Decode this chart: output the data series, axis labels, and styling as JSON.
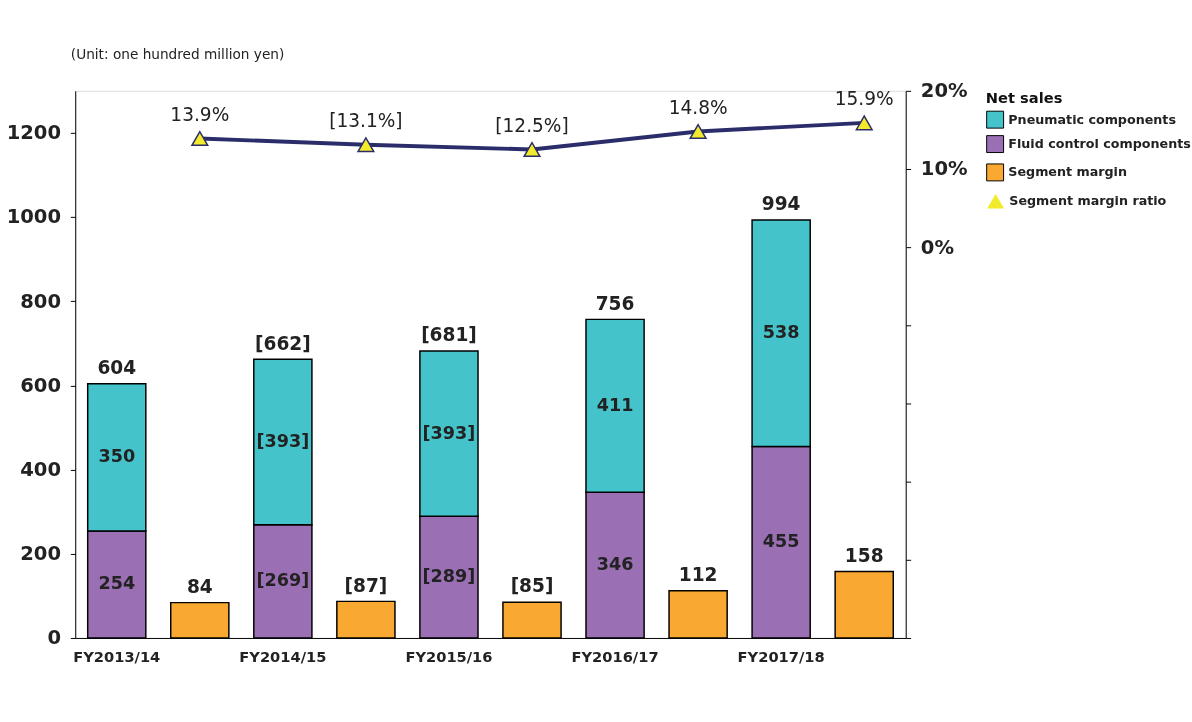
{
  "chart_data": {
    "type": "bar",
    "ylabel": "(Unit: one hundred million yen)",
    "categories": [
      "FY2013/14",
      null,
      "FY2014/15",
      null,
      "FY2015/16",
      null,
      "FY2016/17",
      null,
      "FY2017/18",
      null
    ],
    "stacked": true,
    "legend": "right",
    "legend_title": "Net sales",
    "grid": false,
    "ylim": [
      0,
      1300
    ],
    "yticks": [
      0,
      200,
      400,
      600,
      800,
      1000,
      1200
    ],
    "y2lim": [
      -50,
      20
    ],
    "y2ticks": [
      {
        "value": -50,
        "label": null
      },
      {
        "value": -40,
        "label": null
      },
      {
        "value": -30,
        "label": null
      },
      {
        "value": -20,
        "label": null
      },
      {
        "value": -10,
        "label": null
      },
      {
        "value": 0,
        "label": "0%"
      },
      {
        "value": 10,
        "label": "10%"
      },
      {
        "value": 20,
        "label": "20%"
      }
    ],
    "totals": [
      "604",
      null,
      "[662]",
      null,
      "[681]",
      null,
      "756",
      null,
      "994",
      null
    ],
    "series": [
      {
        "name": "Fluid control components",
        "color": "#9b6fb3",
        "values": [
          254,
          null,
          269,
          null,
          289,
          null,
          346,
          null,
          455,
          null
        ],
        "value_labels": [
          "254",
          null,
          "[269]",
          null,
          "[289]",
          null,
          "346",
          null,
          "455",
          null
        ]
      },
      {
        "name": "Pneumatic components",
        "color": "#45c3cb",
        "values": [
          350,
          null,
          393,
          null,
          393,
          null,
          411,
          null,
          538,
          null
        ],
        "value_labels": [
          "350",
          null,
          "[393]",
          null,
          "[393]",
          null,
          "411",
          null,
          "538",
          null
        ]
      },
      {
        "name": "Segment margin",
        "color": "#f9a832",
        "values": [
          null,
          84,
          null,
          87,
          null,
          85,
          null,
          112,
          null,
          158
        ],
        "value_labels": [
          null,
          "84",
          null,
          "[87]",
          null,
          "[85]",
          null,
          "112",
          null,
          "158"
        ]
      },
      {
        "name": "Segment margin ratio",
        "type": "line",
        "axis": "y2",
        "color": "#2b2d6b",
        "marker": "triangle",
        "values": [
          null,
          13.9,
          null,
          13.1,
          null,
          12.5,
          null,
          14.8,
          null,
          15.9
        ],
        "value_labels": [
          null,
          "13.9%",
          null,
          "[13.1%]",
          null,
          "[12.5%]",
          null,
          "14.8%",
          null,
          "15.9%"
        ]
      }
    ]
  }
}
